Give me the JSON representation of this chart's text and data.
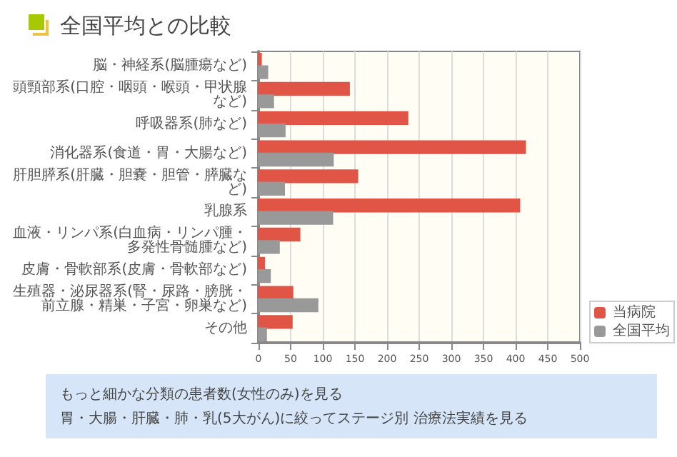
{
  "chart_data": {
    "type": "bar",
    "orientation": "horizontal",
    "title": "全国平均との比較",
    "categories": [
      "脳・神経系(脳腫瘍など)",
      "頭頸部系(口腔・咽頭・喉頭・甲状腺など)",
      "呼吸器系(肺など)",
      "消化器系(食道・胃・大腸など)",
      "肝胆膵系(肝臓・胆嚢・胆管・膵臓など)",
      "乳腺系",
      "血液・リンパ系(白血病・リンパ腫・多発性骨髄腫など)",
      "皮膚・骨軟部系(皮膚・骨軟部など)",
      "生殖器・泌尿器系(腎・尿路・膀胱・前立腺・精巣・子宮・卵巣など)",
      "その他"
    ],
    "series": [
      {
        "name": "当病院",
        "color": "#e05546",
        "values": [
          4,
          141,
          232,
          415,
          154,
          406,
          64,
          9,
          53,
          52
        ]
      },
      {
        "name": "全国平均",
        "color": "#999999",
        "values": [
          14,
          23,
          41,
          116,
          40,
          115,
          32,
          18,
          92,
          12
        ]
      }
    ],
    "xlim": [
      0,
      500
    ],
    "xticks": [
      0,
      50,
      100,
      150,
      200,
      250,
      300,
      350,
      400,
      450,
      500
    ],
    "grid": "x",
    "legend": "bottom right",
    "annotations": [
      "もっと細かな分類の患者数(女性のみ)を見る",
      "胃・大腸・肝臓・肺・乳(5大がん)に絞ってステージ別 治療法実績を見る"
    ]
  }
}
